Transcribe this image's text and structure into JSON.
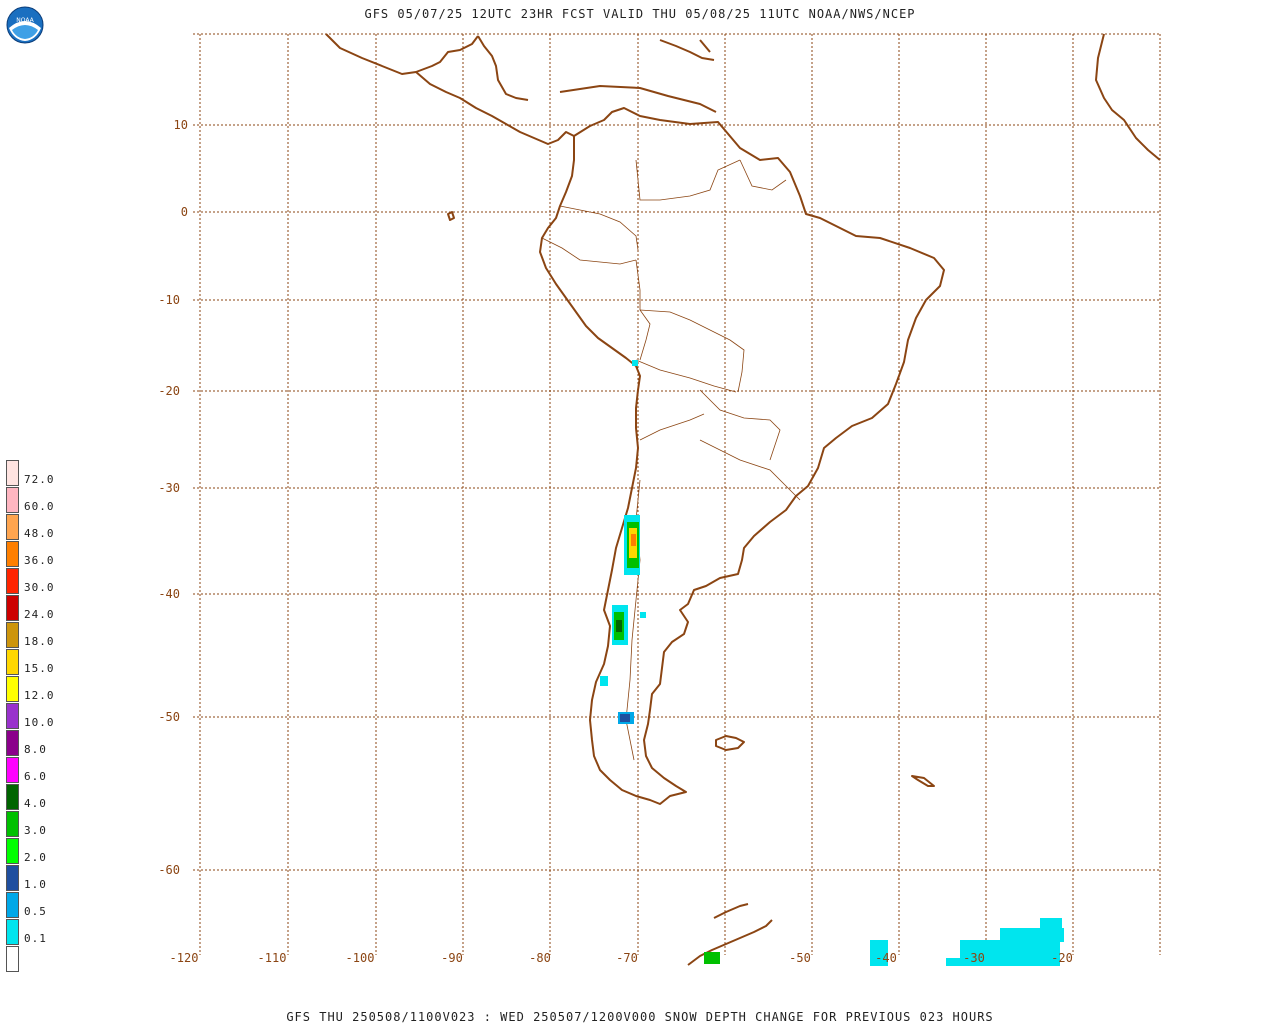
{
  "header": {
    "title": "GFS 05/07/25 12UTC 23HR FCST VALID THU 05/08/25 11UTC NOAA/NWS/NCEP",
    "logo_text": "NOAA"
  },
  "footer": {
    "caption": "GFS THU 250508/1100V023 : WED 250507/1200V000 SNOW DEPTH CHANGE FOR PREVIOUS 023 HOURS"
  },
  "map": {
    "type": "snow-depth-change forecast map",
    "region": "South America",
    "lat_ticks": [
      "10",
      "0",
      "-10",
      "-20",
      "-30",
      "-40",
      "-50",
      "-60"
    ],
    "lon_ticks": [
      "-120",
      "-110",
      "-100",
      "-90",
      "-80",
      "-70",
      "-50",
      "-40",
      "-30",
      "-20"
    ],
    "coastline_color": "#8b4513",
    "grid_color": "#8b4513"
  },
  "legend": {
    "levels": [
      {
        "label": "",
        "color": "#ffffff"
      },
      {
        "label": "0.1",
        "color": "#00e5ee"
      },
      {
        "label": "0.5",
        "color": "#00a8e8"
      },
      {
        "label": "1.0",
        "color": "#1f4f9f"
      },
      {
        "label": "2.0",
        "color": "#00ff00"
      },
      {
        "label": "3.0",
        "color": "#00c000"
      },
      {
        "label": "4.0",
        "color": "#006400"
      },
      {
        "label": "6.0",
        "color": "#ff00ff"
      },
      {
        "label": "8.0",
        "color": "#8b008b"
      },
      {
        "label": "10.0",
        "color": "#9932cc"
      },
      {
        "label": "12.0",
        "color": "#ffff00"
      },
      {
        "label": "15.0",
        "color": "#ffd700"
      },
      {
        "label": "18.0",
        "color": "#cd950c"
      },
      {
        "label": "24.0",
        "color": "#cd0000"
      },
      {
        "label": "30.0",
        "color": "#ff2400"
      },
      {
        "label": "36.0",
        "color": "#ff7f00"
      },
      {
        "label": "48.0",
        "color": "#ffa54f"
      },
      {
        "label": "60.0",
        "color": "#ffb6c1"
      },
      {
        "label": "72.0",
        "color": "#ffe4e1"
      }
    ]
  }
}
